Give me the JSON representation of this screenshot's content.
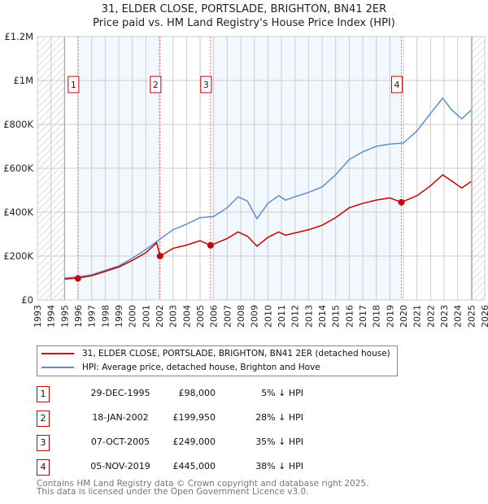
{
  "title": "31, ELDER CLOSE, PORTSLADE, BRIGHTON, BN41 2ER",
  "subtitle": "Price paid vs. HM Land Registry's House Price Index (HPI)",
  "chart_data": {
    "type": "line",
    "xlim": [
      1993,
      2026
    ],
    "ylim": [
      0,
      1200000
    ],
    "x_ticks": [
      "1993",
      "1994",
      "1995",
      "1996",
      "1997",
      "1998",
      "1999",
      "2000",
      "2001",
      "2002",
      "2003",
      "2004",
      "2005",
      "2006",
      "2007",
      "2008",
      "2009",
      "2010",
      "2011",
      "2012",
      "2013",
      "2014",
      "2015",
      "2016",
      "2017",
      "2018",
      "2019",
      "2020",
      "2021",
      "2022",
      "2023",
      "2024",
      "2025",
      "2026"
    ],
    "y_ticks": [
      {
        "v": 0,
        "label": "£0"
      },
      {
        "v": 200000,
        "label": "£200K"
      },
      {
        "v": 400000,
        "label": "£400K"
      },
      {
        "v": 600000,
        "label": "£600K"
      },
      {
        "v": 800000,
        "label": "£800K"
      },
      {
        "v": 1000000,
        "label": "£1M"
      },
      {
        "v": 1200000,
        "label": "£1.2M"
      }
    ],
    "hatched_ranges": [
      [
        1993,
        1995
      ],
      [
        2025,
        2026
      ]
    ],
    "series": [
      {
        "name": "31, ELDER CLOSE, PORTSLADE, BRIGHTON, BN41 2ER (detached house)",
        "color": "#cc0000",
        "x": [
          1995,
          1996,
          1997,
          1998,
          1999,
          2000,
          2001,
          2001.8,
          2002.05,
          2003,
          2004,
          2005,
          2005.77,
          2007,
          2007.8,
          2008.5,
          2009.2,
          2010,
          2010.8,
          2011.3,
          2012,
          2013,
          2014,
          2015,
          2016,
          2017,
          2018,
          2019,
          2019.85,
          2021,
          2022,
          2022.9,
          2023.5,
          2024.3,
          2025
        ],
        "y": [
          95000,
          100000,
          110000,
          130000,
          150000,
          180000,
          215000,
          260000,
          200000,
          235000,
          250000,
          270000,
          249000,
          280000,
          310000,
          290000,
          245000,
          285000,
          310000,
          295000,
          305000,
          320000,
          340000,
          375000,
          420000,
          440000,
          455000,
          465000,
          445000,
          475000,
          520000,
          570000,
          545000,
          510000,
          540000
        ]
      },
      {
        "name": "HPI: Average price, detached house, Brighton and Hove",
        "color": "#5b8fd4",
        "x": [
          1995,
          1996,
          1997,
          1998,
          1999,
          2000,
          2001,
          2002,
          2003,
          2004,
          2005,
          2006,
          2007,
          2007.8,
          2008.5,
          2009.2,
          2010,
          2010.8,
          2011.3,
          2012,
          2013,
          2014,
          2015,
          2016,
          2017,
          2018,
          2019,
          2020,
          2021,
          2022,
          2022.9,
          2023.5,
          2024.3,
          2025
        ],
        "y": [
          100000,
          105000,
          115000,
          135000,
          155000,
          190000,
          230000,
          275000,
          320000,
          345000,
          375000,
          380000,
          420000,
          470000,
          450000,
          370000,
          440000,
          475000,
          455000,
          470000,
          490000,
          515000,
          570000,
          640000,
          675000,
          700000,
          710000,
          715000,
          770000,
          850000,
          920000,
          870000,
          825000,
          865000
        ]
      }
    ],
    "sales": [
      {
        "n": "1",
        "x": 1995.99,
        "price": 98000,
        "date": "29-DEC-1995",
        "price_label": "£98,000",
        "hpi": "5% ↓ HPI"
      },
      {
        "n": "2",
        "x": 2002.05,
        "price": 199950,
        "date": "18-JAN-2002",
        "price_label": "£199,950",
        "hpi": "28% ↓ HPI"
      },
      {
        "n": "3",
        "x": 2005.77,
        "price": 249000,
        "date": "07-OCT-2005",
        "price_label": "£249,000",
        "hpi": "35% ↓ HPI"
      },
      {
        "n": "4",
        "x": 2019.85,
        "price": 445000,
        "date": "05-NOV-2019",
        "price_label": "£445,000",
        "hpi": "38% ↓ HPI"
      }
    ]
  },
  "legend": [
    "31, ELDER CLOSE, PORTSLADE, BRIGHTON, BN41 2ER (detached house)",
    "HPI: Average price, detached house, Brighton and Hove"
  ],
  "footer": [
    "Contains HM Land Registry data © Crown copyright and database right 2025.",
    "This data is licensed under the Open Government Licence v3.0."
  ]
}
